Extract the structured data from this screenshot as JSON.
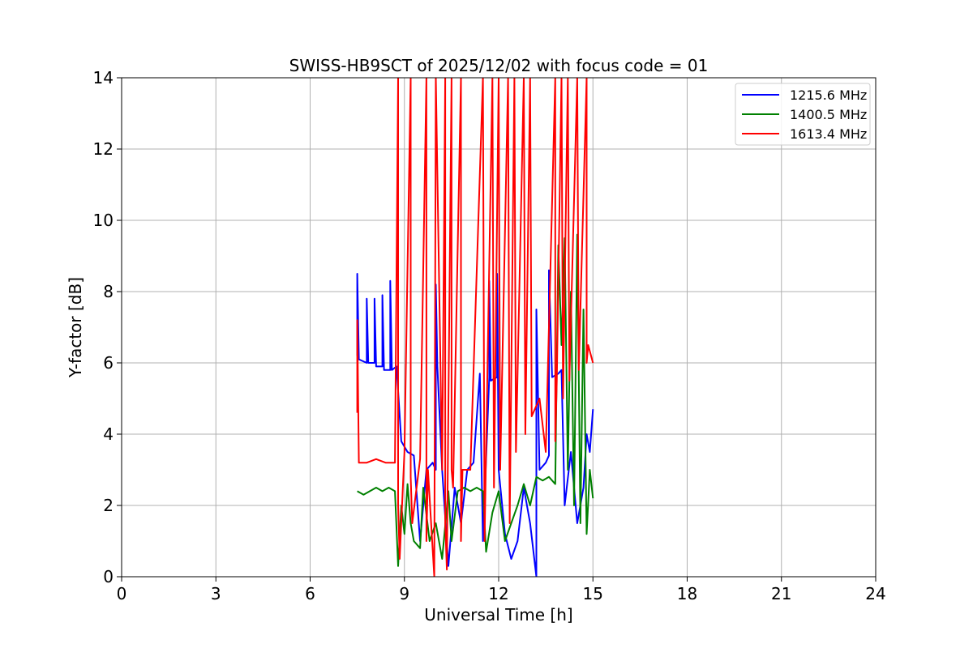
{
  "chart_data": {
    "type": "line",
    "title": "SWISS-HB9SCT of 2025/12/02 with focus code = 01",
    "xlabel": "Universal Time [h]",
    "ylabel": "Y-factor [dB]",
    "xlim": [
      0,
      24
    ],
    "ylim": [
      0,
      14
    ],
    "xticks": [
      0,
      3,
      6,
      9,
      12,
      15,
      18,
      21,
      24
    ],
    "yticks": [
      0,
      2,
      4,
      6,
      8,
      10,
      12,
      14
    ],
    "grid": true,
    "legend_position": "top-right",
    "series": [
      {
        "name": "1215.6 MHz",
        "color": "#0000ff",
        "x": [
          7.5,
          7.5,
          7.55,
          7.8,
          7.8,
          7.85,
          8.05,
          8.05,
          8.1,
          8.3,
          8.3,
          8.35,
          8.55,
          8.55,
          8.6,
          8.75,
          8.9,
          9.1,
          9.3,
          9.5,
          9.7,
          9.9,
          10.0,
          10.0,
          10.05,
          10.2,
          10.4,
          10.6,
          10.8,
          11.0,
          11.2,
          11.4,
          11.5,
          11.7,
          11.7,
          11.75,
          11.95,
          11.95,
          12.0,
          12.2,
          12.4,
          12.6,
          12.8,
          13.0,
          13.2,
          13.2,
          13.3,
          13.5,
          13.6,
          13.6,
          13.7,
          13.9,
          14.0,
          14.1,
          14.3,
          14.5,
          14.7,
          14.8,
          14.9,
          15.0
        ],
        "y": [
          6.2,
          8.5,
          6.1,
          6.0,
          7.8,
          6.0,
          6.0,
          7.8,
          5.9,
          5.9,
          7.9,
          5.8,
          5.8,
          8.3,
          5.8,
          5.9,
          3.8,
          3.5,
          3.4,
          1.0,
          3.0,
          3.2,
          3.0,
          8.2,
          5.9,
          3.0,
          0.3,
          2.5,
          1.5,
          3.0,
          3.2,
          5.7,
          1.0,
          5.6,
          8.3,
          5.5,
          5.6,
          8.5,
          3.0,
          1.2,
          0.5,
          1.0,
          2.5,
          1.5,
          0.0,
          7.5,
          3.0,
          3.2,
          3.4,
          8.6,
          5.6,
          5.7,
          5.8,
          2.0,
          3.5,
          1.5,
          2.5,
          4.0,
          3.5,
          4.7
        ]
      },
      {
        "name": "1400.5 MHz",
        "color": "#008000",
        "x": [
          7.5,
          7.7,
          7.9,
          8.1,
          8.3,
          8.5,
          8.7,
          8.8,
          8.9,
          9.0,
          9.1,
          9.2,
          9.3,
          9.5,
          9.6,
          9.8,
          10.0,
          10.2,
          10.4,
          10.5,
          10.7,
          10.9,
          11.1,
          11.3,
          11.5,
          11.6,
          11.8,
          12.0,
          12.2,
          12.4,
          12.6,
          12.8,
          13.0,
          13.2,
          13.4,
          13.6,
          13.8,
          13.9,
          14.0,
          14.1,
          14.2,
          14.3,
          14.4,
          14.5,
          14.6,
          14.7,
          14.8,
          14.9,
          15.0
        ],
        "y": [
          2.4,
          2.3,
          2.4,
          2.5,
          2.4,
          2.5,
          2.4,
          0.3,
          2.0,
          1.2,
          2.6,
          1.5,
          1.0,
          0.8,
          2.5,
          1.0,
          1.5,
          0.5,
          2.4,
          1.0,
          2.4,
          2.5,
          2.4,
          2.5,
          2.4,
          0.7,
          1.8,
          2.4,
          1.0,
          1.5,
          2.0,
          2.6,
          2.0,
          2.8,
          2.7,
          2.8,
          2.6,
          9.3,
          6.5,
          9.5,
          3.0,
          8.0,
          2.0,
          9.6,
          1.5,
          7.5,
          1.2,
          3.0,
          2.2
        ]
      },
      {
        "name": "1613.4 MHz",
        "color": "#ff0000",
        "x": [
          7.5,
          7.5,
          7.55,
          7.8,
          8.1,
          8.4,
          8.7,
          8.8,
          8.8,
          8.85,
          9.0,
          9.2,
          9.2,
          9.25,
          9.5,
          9.7,
          9.7,
          9.75,
          9.95,
          10.0,
          10.2,
          10.3,
          10.3,
          10.35,
          10.5,
          10.5,
          10.55,
          10.8,
          10.8,
          10.85,
          11.1,
          11.5,
          11.55,
          11.8,
          11.85,
          12.0,
          12.05,
          12.3,
          12.35,
          12.5,
          12.55,
          12.8,
          12.85,
          13.0,
          13.05,
          13.3,
          13.5,
          13.8,
          13.8,
          13.85,
          14.0,
          14.05,
          14.2,
          14.25,
          14.5,
          14.55,
          14.8,
          14.8,
          14.85,
          15.0
        ],
        "y": [
          4.6,
          7.2,
          3.2,
          3.2,
          3.3,
          3.2,
          3.2,
          14.0,
          2.0,
          0.5,
          3.5,
          14.0,
          2.8,
          1.5,
          3.3,
          14.0,
          1.0,
          3.0,
          0.0,
          14.0,
          3.0,
          14.0,
          1.5,
          0.2,
          14.0,
          3.0,
          2.5,
          14.0,
          1.0,
          3.0,
          3.0,
          14.0,
          1.0,
          14.0,
          2.5,
          14.0,
          3.0,
          14.0,
          1.5,
          14.0,
          3.5,
          14.0,
          4.0,
          14.0,
          4.5,
          5.0,
          3.5,
          14.0,
          3.8,
          5.5,
          14.0,
          5.0,
          14.0,
          5.5,
          14.0,
          5.8,
          14.0,
          6.0,
          6.5,
          6.0
        ]
      }
    ]
  }
}
